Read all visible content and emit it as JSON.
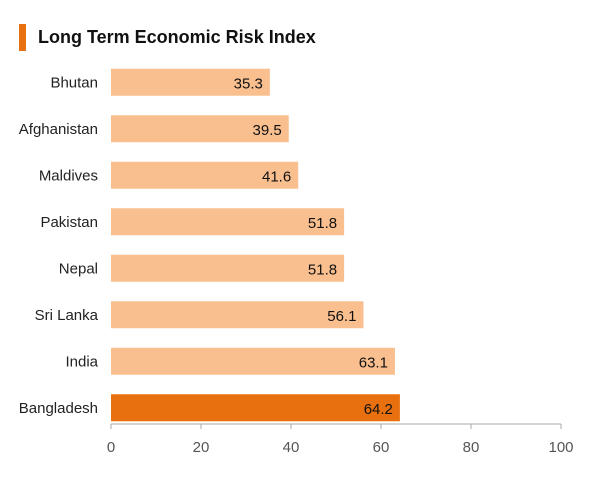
{
  "chart_data": {
    "type": "bar",
    "orientation": "horizontal",
    "title": "Long Term Economic Risk Index",
    "categories": [
      "Bhutan",
      "Afghanistan",
      "Maldives",
      "Pakistan",
      "Nepal",
      "Sri Lanka",
      "India",
      "Bangladesh"
    ],
    "values": [
      35.3,
      39.5,
      41.6,
      51.8,
      51.8,
      56.1,
      63.1,
      64.2
    ],
    "value_labels": [
      "35.3",
      "39.5",
      "41.6",
      "51.8",
      "51.8",
      "56.1",
      "63.1",
      "64.2"
    ],
    "highlight_category": "Bangladesh",
    "xlim": [
      0,
      100
    ],
    "xticks": [
      0,
      20,
      40,
      60,
      80,
      100
    ],
    "xtick_labels": [
      "0",
      "20",
      "40",
      "60",
      "80",
      "100"
    ],
    "xlabel": "",
    "ylabel": "",
    "grid": false,
    "legend": "none",
    "colors": {
      "bar": "#f9bf8f",
      "highlight": "#e8700f",
      "title_accent": "#e8700f",
      "axis": "#aaaaaa"
    }
  }
}
